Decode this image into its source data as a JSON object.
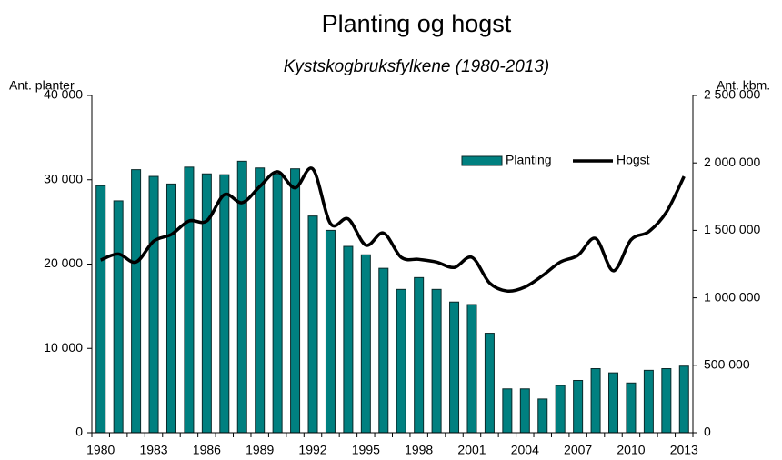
{
  "chart_data": {
    "type": "bar_line",
    "title": "Planting og hogst",
    "subtitle": "Kystskogbruksfylkene (1980-2013)",
    "y_label": "Ant. planter",
    "y2_label": "Ant. kbm.",
    "categories": [
      "1980",
      null,
      null,
      "1983",
      null,
      null,
      "1986",
      null,
      null,
      "1989",
      null,
      null,
      "1992",
      null,
      null,
      "1995",
      null,
      null,
      "1998",
      null,
      null,
      "2001",
      null,
      null,
      "2004",
      null,
      null,
      "2007",
      null,
      null,
      "2010",
      null,
      null,
      "2013"
    ],
    "series": [
      {
        "name": "Planting",
        "color": "#008080",
        "type": "bar",
        "values": [
          29300,
          27500,
          31200,
          30400,
          29500,
          31500,
          30700,
          30600,
          32200,
          31400,
          30700,
          31300,
          25700,
          24000,
          22100,
          21100,
          19500,
          17000,
          18400,
          17000,
          15500,
          15200,
          11800,
          5200,
          5200,
          4000,
          5600,
          6200,
          7600,
          7100,
          5900,
          7400,
          7600,
          7900
        ]
      },
      {
        "name": "Hogst",
        "color": "#000000",
        "type": "line",
        "axis": "y2",
        "values": [
          1280000,
          1325000,
          1265000,
          1420000,
          1470000,
          1570000,
          1570000,
          1765000,
          1705000,
          1825000,
          1935000,
          1815000,
          1955000,
          1550000,
          1585000,
          1390000,
          1480000,
          1300000,
          1285000,
          1265000,
          1225000,
          1300000,
          1110000,
          1050000,
          1080000,
          1165000,
          1265000,
          1315000,
          1440000,
          1200000,
          1430000,
          1490000,
          1635000,
          1900000
        ]
      }
    ],
    "ylim": [
      0,
      40000
    ],
    "yticks": [
      0,
      {
        "value": 10000,
        "label": "10 000"
      },
      {
        "value": 20000,
        "label": "20 000"
      },
      {
        "value": 30000,
        "label": "30 000"
      },
      {
        "value": 40000,
        "label": "40 000"
      }
    ],
    "y2lim": [
      0,
      2500000
    ],
    "y2ticks": [
      0,
      {
        "value": 500000,
        "label": "500 000"
      },
      {
        "value": 1000000,
        "label": "1 000 000"
      },
      {
        "value": 1500000,
        "label": "1 500 000"
      },
      {
        "value": 2000000,
        "label": "2 000 000"
      },
      {
        "value": 2500000,
        "label": "2 500 000"
      }
    ],
    "legend": "top-right"
  }
}
